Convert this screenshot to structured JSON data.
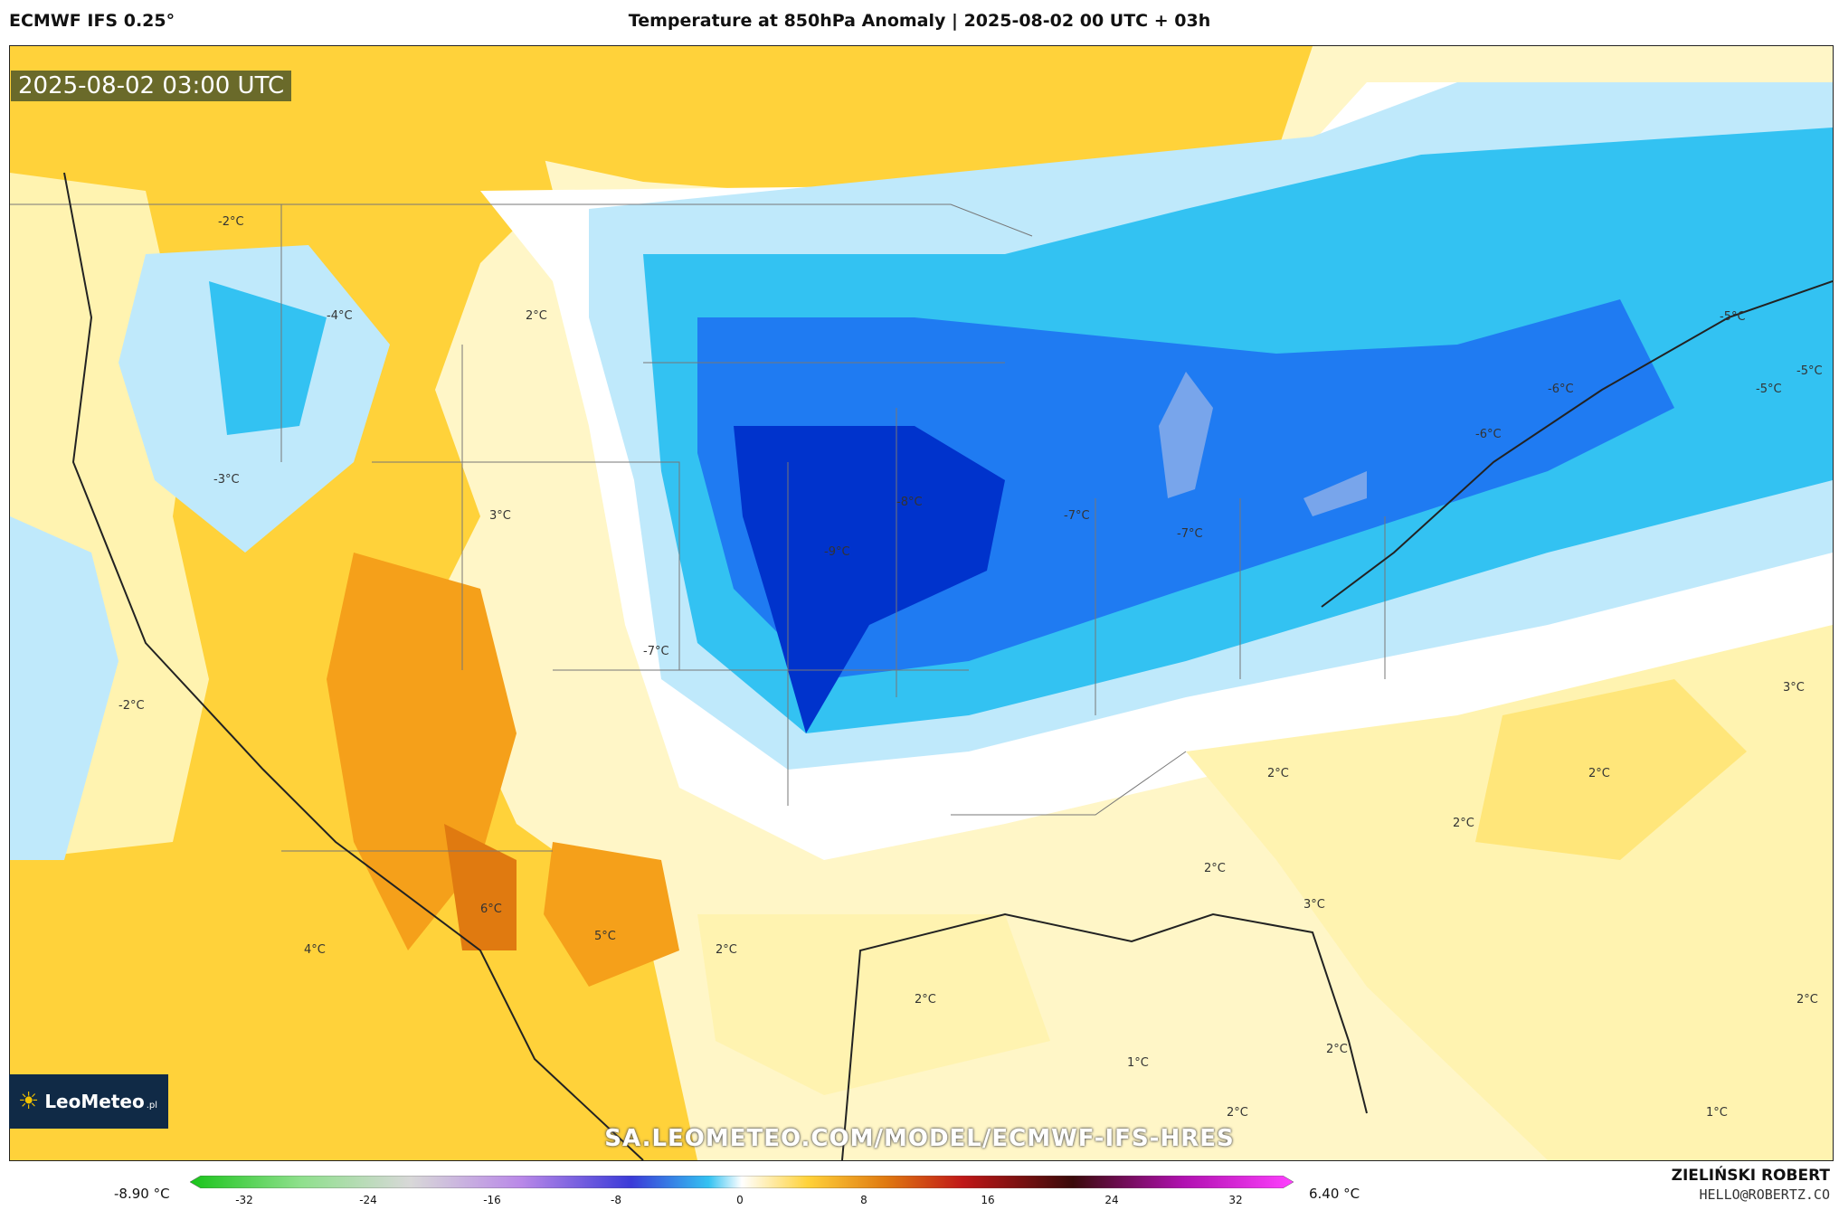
{
  "header": {
    "model": "ECMWF IFS 0.25°",
    "title": "Temperature at 850hPa Anomaly | 2025-08-02 00 UTC + 03h"
  },
  "timestamp": "2025-08-02 03:00 UTC",
  "logo": {
    "text": "LeoMeteo",
    "suffix": ".pl",
    "icon": "sun-icon"
  },
  "watermark": "SA.LEOMETEO.COM/MODEL/ECMWF-IFS-HRES",
  "legend": {
    "min_label": "-8.90 °C",
    "max_label": "6.40 °C",
    "ticks": [
      "-32",
      "-24",
      "-16",
      "-8",
      "0",
      "8",
      "16",
      "24",
      "32"
    ],
    "colors": {
      "deep_blue": "#0033cc",
      "blue": "#1f7bf2",
      "light_blue": "#33c2f2",
      "pale_blue": "#bfe9fb",
      "white": "#ffffff",
      "pale_yellow": "#fff3b0",
      "yellow": "#ffd23a",
      "orange": "#f5a01a",
      "dark_orange": "#e07a10"
    }
  },
  "author": {
    "name": "ZIELIŃSKI ROBERT",
    "email": "HELLO@ROBERTZ.CO"
  },
  "map_labels": [
    {
      "text": "-2°C"
    },
    {
      "text": "-4°C"
    },
    {
      "text": "2°C"
    },
    {
      "text": "-3°C"
    },
    {
      "text": "3°C"
    },
    {
      "text": "-8°C"
    },
    {
      "text": "-7°C"
    },
    {
      "text": "-7°C"
    },
    {
      "text": "-9°C"
    },
    {
      "text": "-7°C"
    },
    {
      "text": "-6°C"
    },
    {
      "text": "-6°C"
    },
    {
      "text": "-5°C"
    },
    {
      "text": "-5°C"
    },
    {
      "text": "-5°C"
    },
    {
      "text": "-2°C"
    },
    {
      "text": "3°C"
    },
    {
      "text": "2°C"
    },
    {
      "text": "2°C"
    },
    {
      "text": "2°C"
    },
    {
      "text": "2°C"
    },
    {
      "text": "6°C"
    },
    {
      "text": "5°C"
    },
    {
      "text": "2°C"
    },
    {
      "text": "4°C"
    },
    {
      "text": "2°C"
    },
    {
      "text": "3°C"
    },
    {
      "text": "2°C"
    },
    {
      "text": "1°C"
    },
    {
      "text": "2°C"
    },
    {
      "text": "1°C"
    },
    {
      "text": "2°C"
    }
  ]
}
